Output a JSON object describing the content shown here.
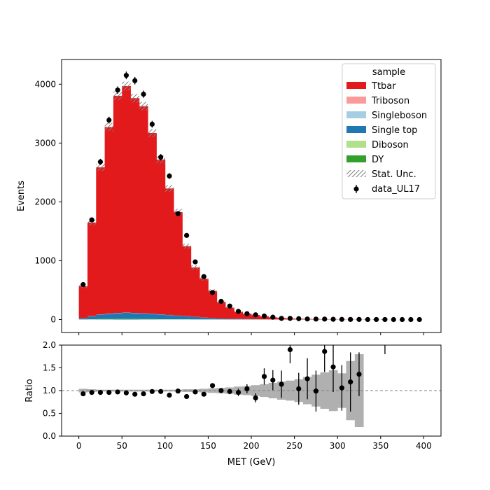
{
  "chart_data": [
    {
      "type": "bar",
      "stacked": true,
      "panel": "main",
      "xlabel": "",
      "ylabel": "Events",
      "xlim": [
        -20,
        420
      ],
      "ylim": [
        -220,
        4420
      ],
      "bin_edges": [
        0,
        10,
        20,
        30,
        40,
        50,
        60,
        70,
        80,
        90,
        100,
        110,
        120,
        130,
        140,
        150,
        160,
        170,
        180,
        190,
        200,
        210,
        220,
        230,
        240,
        250,
        260,
        270,
        280,
        290,
        300,
        310,
        320,
        330,
        340,
        350,
        360,
        370,
        380,
        390,
        400
      ],
      "x_ticks": [
        0,
        50,
        100,
        150,
        200,
        250,
        300,
        350,
        400
      ],
      "y_ticks": [
        0,
        1000,
        2000,
        3000,
        4000
      ],
      "series": [
        {
          "name": "DY",
          "color": "#33a02c",
          "values": [
            2,
            4,
            5,
            5,
            6,
            6,
            6,
            5,
            5,
            4,
            4,
            3,
            3,
            2,
            2,
            2,
            1,
            1,
            1,
            1,
            1,
            0,
            0,
            0,
            0,
            0,
            0,
            0,
            0,
            0,
            0,
            0,
            0,
            0,
            0,
            0,
            0,
            0,
            0,
            0
          ]
        },
        {
          "name": "Diboson",
          "color": "#b2df8a",
          "values": [
            1,
            2,
            3,
            3,
            3,
            3,
            3,
            3,
            3,
            2,
            2,
            2,
            2,
            1,
            1,
            1,
            1,
            1,
            1,
            1,
            1,
            0,
            0,
            0,
            0,
            0,
            0,
            0,
            0,
            0,
            0,
            0,
            0,
            0,
            0,
            0,
            0,
            0,
            0,
            0
          ]
        },
        {
          "name": "Single top",
          "color": "#1f78b4",
          "values": [
            20,
            50,
            75,
            90,
            100,
            105,
            100,
            95,
            90,
            80,
            70,
            60,
            50,
            40,
            30,
            22,
            15,
            10,
            8,
            6,
            4,
            3,
            2,
            2,
            1,
            1,
            1,
            0,
            0,
            0,
            0,
            0,
            0,
            0,
            0,
            0,
            0,
            0,
            0,
            0
          ]
        },
        {
          "name": "Singleboson",
          "color": "#a6cee3",
          "values": [
            2,
            3,
            4,
            4,
            4,
            4,
            4,
            3,
            3,
            3,
            2,
            2,
            2,
            2,
            1,
            1,
            1,
            1,
            1,
            0,
            0,
            0,
            0,
            0,
            0,
            0,
            0,
            0,
            0,
            0,
            0,
            0,
            0,
            0,
            0,
            0,
            0,
            0,
            0,
            0
          ]
        },
        {
          "name": "Triboson",
          "color": "#fb9a99",
          "values": [
            0,
            0,
            0,
            0,
            0,
            0,
            0,
            0,
            0,
            0,
            0,
            0,
            0,
            0,
            0,
            0,
            0,
            0,
            0,
            0,
            0,
            0,
            0,
            0,
            0,
            0,
            0,
            0,
            0,
            0,
            0,
            0,
            0,
            0,
            0,
            0,
            0,
            0,
            0,
            0
          ]
        },
        {
          "name": "Ttbar",
          "color": "#e31a1c",
          "values": [
            540,
            1590,
            2500,
            3170,
            3690,
            3850,
            3650,
            3520,
            3070,
            2630,
            2150,
            1760,
            1190,
            840,
            660,
            460,
            280,
            190,
            120,
            90,
            70,
            50,
            35,
            25,
            16,
            12,
            9,
            7,
            5,
            4,
            3,
            2,
            2,
            1,
            1,
            1,
            0,
            0,
            0,
            0
          ]
        }
      ],
      "stat_unc_label": "Stat. Unc.",
      "data": {
        "name": "data_UL17",
        "x": [
          5,
          15,
          25,
          35,
          45,
          55,
          65,
          75,
          85,
          95,
          105,
          115,
          125,
          135,
          145,
          155,
          165,
          175,
          185,
          195,
          205,
          215,
          225,
          235,
          245,
          255,
          265,
          275,
          285,
          295,
          305,
          315,
          325,
          335,
          345,
          355,
          365,
          375,
          385,
          395
        ],
        "y": [
          595,
          1695,
          2680,
          3390,
          3900,
          4150,
          4060,
          3830,
          3320,
          2760,
          2440,
          1800,
          1430,
          980,
          730,
          460,
          310,
          230,
          140,
          100,
          80,
          60,
          40,
          20,
          20,
          15,
          10,
          8,
          8,
          5,
          3,
          2,
          2,
          1,
          1,
          1,
          0,
          0,
          0,
          0
        ]
      },
      "legend": {
        "title": "sample",
        "placement": "top-right",
        "entries": [
          "Ttbar",
          "Triboson",
          "Singleboson",
          "Single top",
          "Diboson",
          "DY",
          "Stat. Unc.",
          "data_UL17"
        ]
      }
    },
    {
      "type": "scatter",
      "panel": "ratio",
      "xlabel": "MET (GeV)",
      "ylabel": "Ratio",
      "xlim": [
        -20,
        420
      ],
      "ylim": [
        0,
        2
      ],
      "x_ticks": [
        0,
        50,
        100,
        150,
        200,
        250,
        300,
        350,
        400
      ],
      "y_ticks": [
        0.0,
        0.5,
        1.0,
        1.5,
        2.0
      ],
      "reference_line": 1.0,
      "unc_band_halfwidth": [
        0.04,
        0.03,
        0.02,
        0.02,
        0.02,
        0.02,
        0.02,
        0.02,
        0.02,
        0.02,
        0.02,
        0.02,
        0.03,
        0.03,
        0.04,
        0.05,
        0.06,
        0.07,
        0.09,
        0.1,
        0.12,
        0.14,
        0.17,
        0.2,
        0.22,
        0.25,
        0.3,
        0.35,
        0.4,
        0.45,
        0.38,
        0.65,
        0.8,
        null,
        null,
        null,
        null,
        null,
        null,
        null
      ],
      "x": [
        5,
        15,
        25,
        35,
        45,
        55,
        65,
        75,
        85,
        95,
        105,
        115,
        125,
        135,
        145,
        155,
        165,
        175,
        185,
        195,
        205,
        215,
        225,
        235,
        245,
        255,
        265,
        275,
        285,
        295,
        305,
        315,
        325
      ],
      "y": [
        0.93,
        0.96,
        0.96,
        0.96,
        0.97,
        0.95,
        0.92,
        0.93,
        0.98,
        0.98,
        0.9,
        0.99,
        0.87,
        0.97,
        0.92,
        1.11,
        1.0,
        0.98,
        0.96,
        1.04,
        0.84,
        1.31,
        1.23,
        1.14,
        1.9,
        1.04,
        1.26,
        0.99,
        1.86,
        1.52,
        1.06,
        1.19,
        1.36
      ],
      "yerr": [
        0.02,
        0.02,
        0.02,
        0.02,
        0.02,
        0.02,
        0.02,
        0.02,
        0.02,
        0.02,
        0.02,
        0.02,
        0.03,
        0.03,
        0.03,
        0.04,
        0.05,
        0.06,
        0.08,
        0.1,
        0.1,
        0.18,
        0.22,
        0.3,
        0.3,
        0.35,
        0.45,
        0.45,
        0.45,
        0.55,
        0.5,
        0.65,
        0.48
      ],
      "offscale_marker_x": 355
    }
  ]
}
